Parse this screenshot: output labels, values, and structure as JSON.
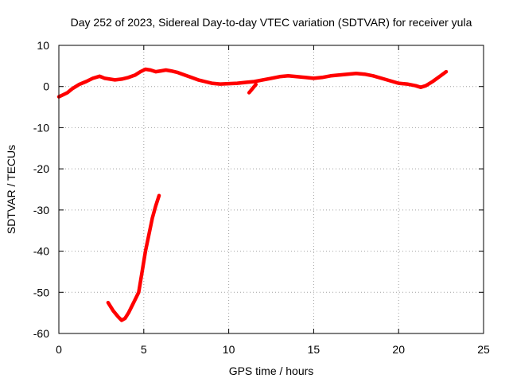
{
  "chart_data": {
    "type": "line",
    "title": "Day 252 of 2023, Sidereal Day-to-day VTEC variation (SDTVAR) for receiver yula",
    "xlabel": "GPS time / hours",
    "ylabel": "SDTVAR / TECUs",
    "xlim": [
      0,
      25
    ],
    "ylim": [
      -60,
      10
    ],
    "xticks": [
      0,
      5,
      10,
      15,
      20,
      25
    ],
    "yticks": [
      -60,
      -50,
      -40,
      -30,
      -20,
      -10,
      0,
      10
    ],
    "grid": true,
    "series_color": "#ff0000",
    "series": [
      {
        "name": "main",
        "x": [
          0.0,
          0.25,
          0.5,
          0.8,
          1.2,
          1.6,
          2.0,
          2.4,
          2.7,
          3.0,
          3.3,
          3.7,
          4.1,
          4.5,
          4.8,
          5.1,
          5.4,
          5.7,
          6.0,
          6.3,
          6.6,
          7.0,
          7.4,
          7.8,
          8.2,
          8.6,
          9.0,
          9.5,
          10.0,
          10.5,
          11.0,
          11.5,
          12.0,
          12.5,
          13.0,
          13.5,
          14.0,
          14.5,
          15.0,
          15.5,
          16.0,
          16.5,
          17.0,
          17.5,
          18.0,
          18.5,
          19.0,
          19.5,
          20.0,
          20.5,
          21.0,
          21.3,
          21.6,
          22.0,
          22.4,
          22.8
        ],
        "y": [
          -2.5,
          -2.0,
          -1.5,
          -0.5,
          0.5,
          1.2,
          2.0,
          2.5,
          2.0,
          1.8,
          1.6,
          1.8,
          2.2,
          2.8,
          3.6,
          4.2,
          4.0,
          3.6,
          3.8,
          4.0,
          3.8,
          3.4,
          2.8,
          2.2,
          1.6,
          1.2,
          0.8,
          0.6,
          0.7,
          0.8,
          1.0,
          1.2,
          1.6,
          2.0,
          2.4,
          2.6,
          2.4,
          2.2,
          2.0,
          2.2,
          2.6,
          2.8,
          3.0,
          3.2,
          3.0,
          2.6,
          2.0,
          1.4,
          0.8,
          0.6,
          0.2,
          -0.2,
          0.2,
          1.2,
          2.4,
          3.6
        ]
      },
      {
        "name": "spur",
        "x": [
          11.2,
          11.4,
          11.6
        ],
        "y": [
          -1.5,
          -0.5,
          0.5
        ]
      },
      {
        "name": "dip",
        "x": [
          2.9,
          3.2,
          3.5,
          3.7,
          3.9,
          4.1,
          4.4,
          4.7,
          4.9,
          5.1,
          5.3,
          5.5,
          5.7,
          5.9
        ],
        "y": [
          -52.5,
          -54.5,
          -56.0,
          -56.8,
          -56.3,
          -55.0,
          -52.5,
          -50.0,
          -45.0,
          -40.0,
          -36.0,
          -32.0,
          -29.0,
          -26.5
        ]
      }
    ]
  }
}
